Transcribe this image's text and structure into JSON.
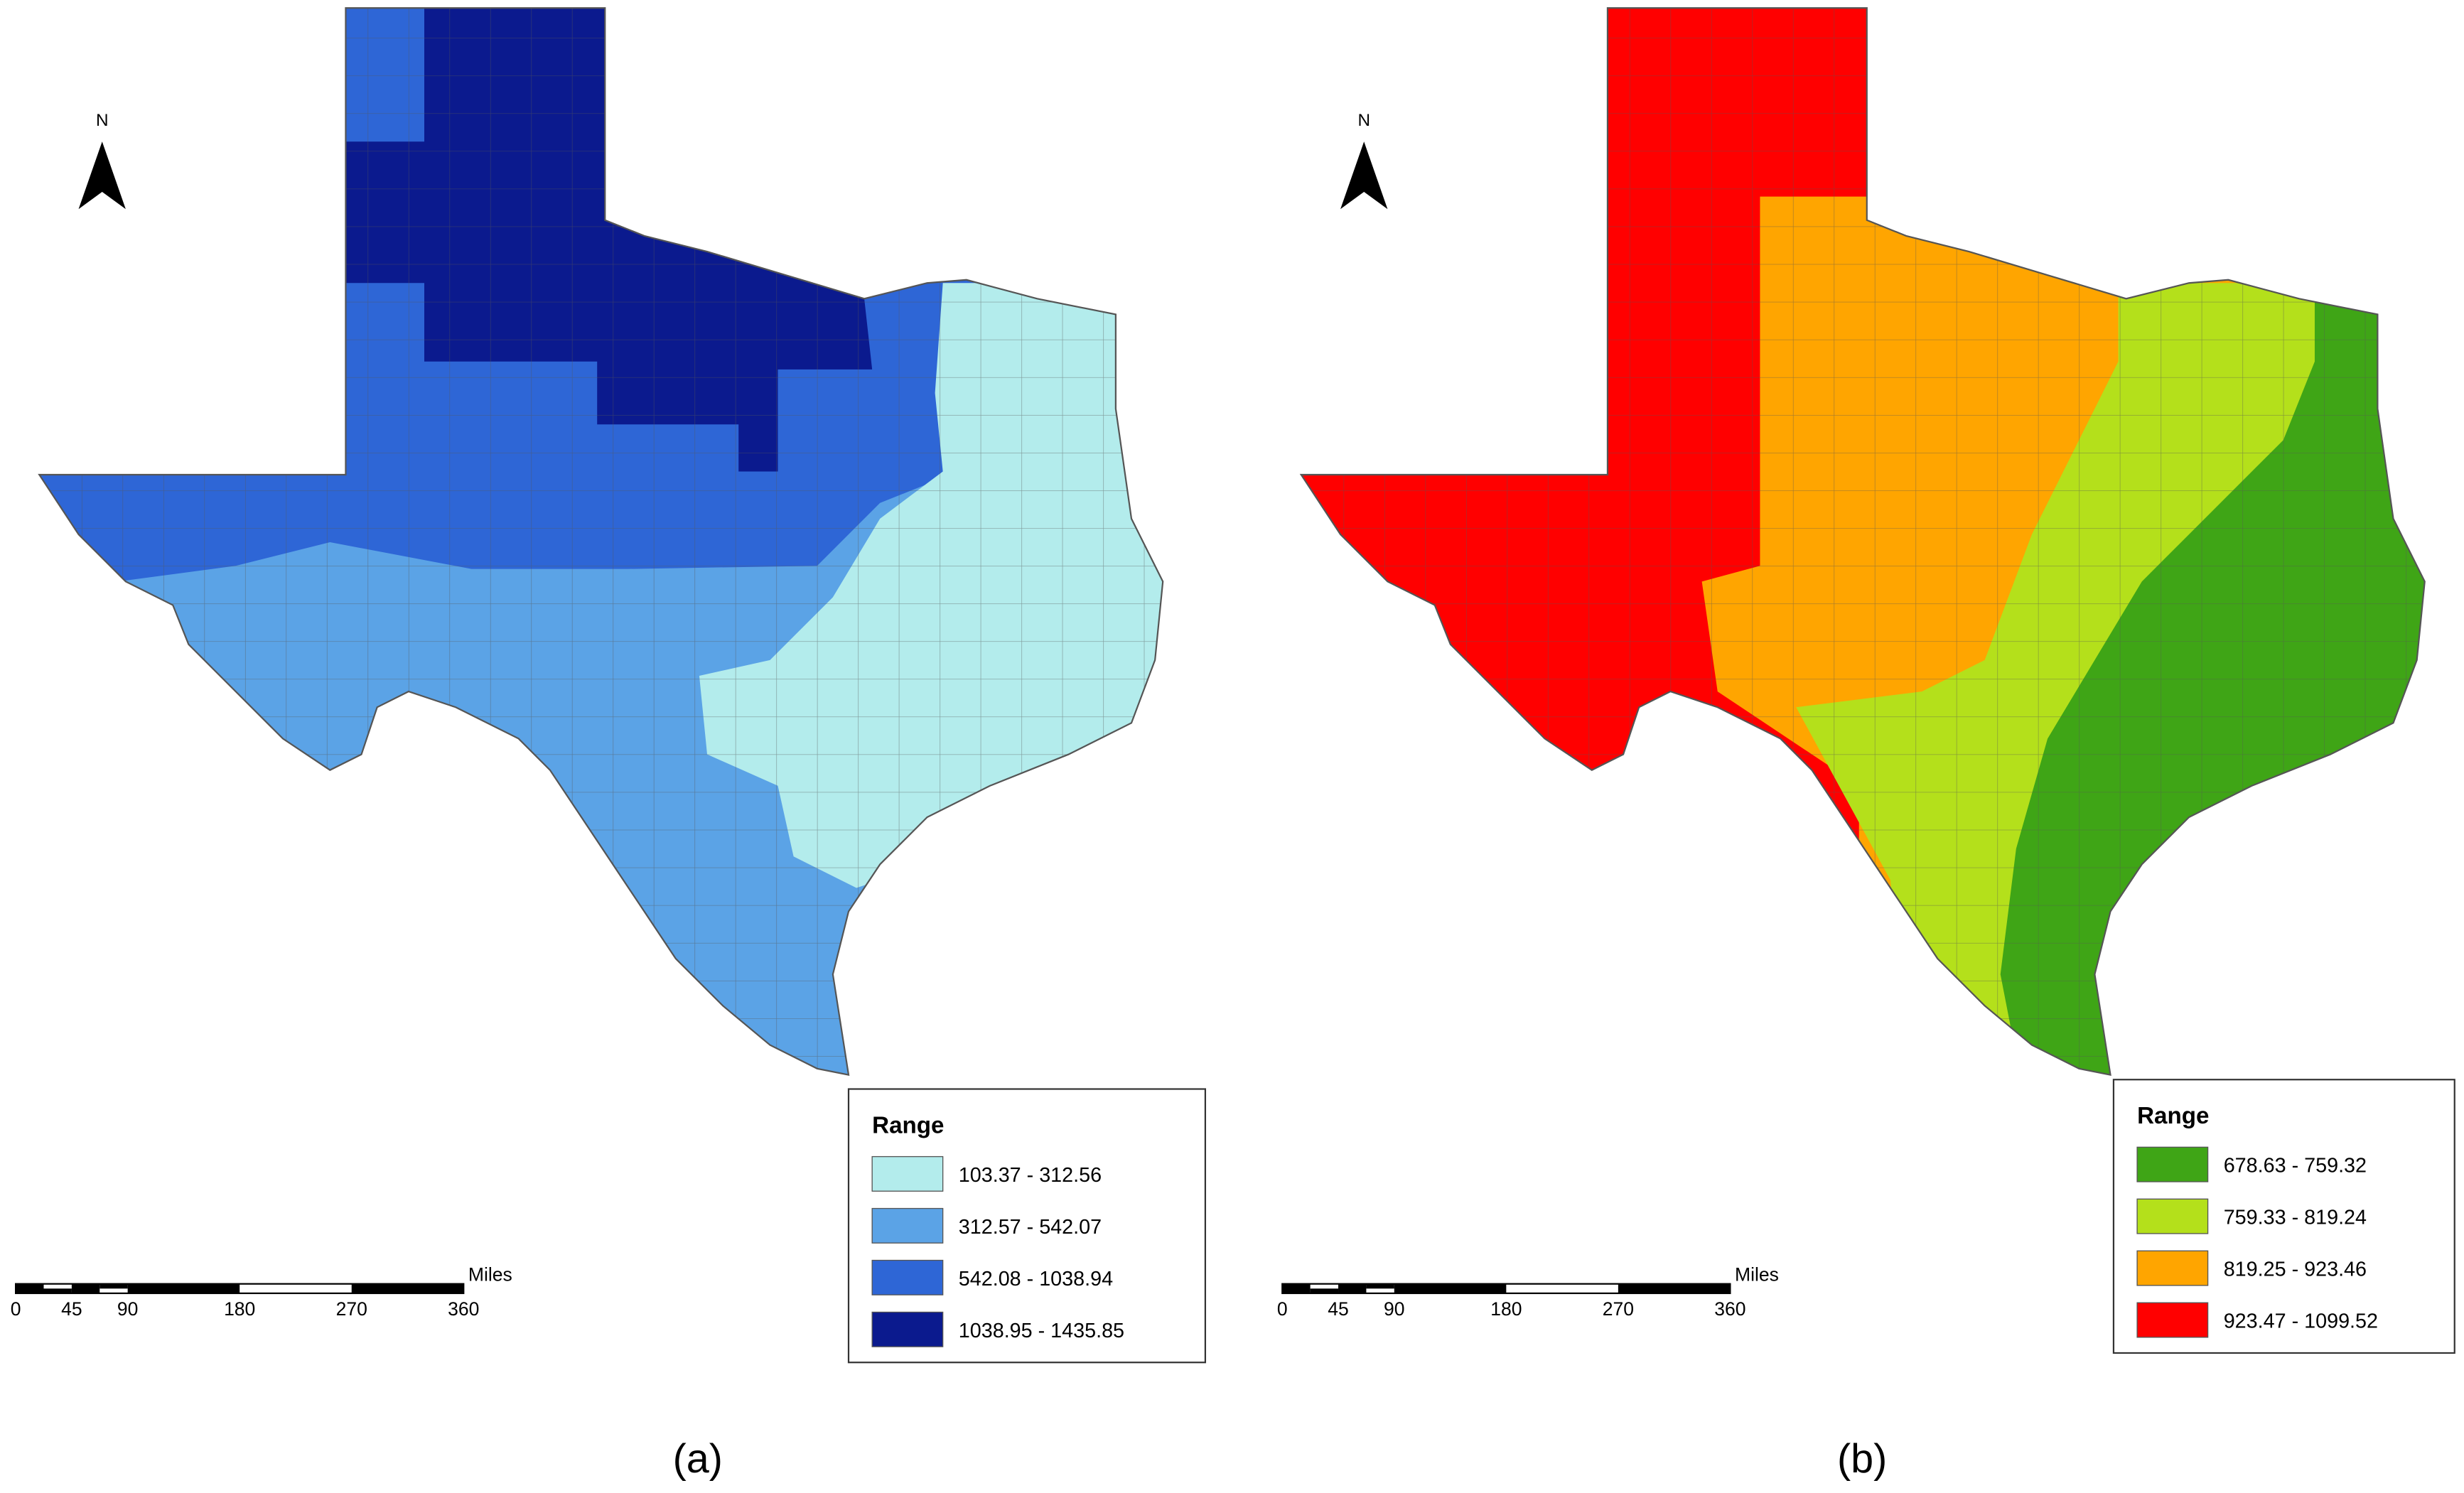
{
  "panels": [
    {
      "label": "(a)",
      "north": "N",
      "scale": {
        "unit": "Miles",
        "ticks": [
          "0",
          "45",
          "90",
          "180",
          "270",
          "360"
        ]
      },
      "legend": {
        "title": "Range",
        "classes": [
          {
            "label": "103.37 - 312.56",
            "color": "#b3ecec"
          },
          {
            "label": "312.57 - 542.07",
            "color": "#5ba3e6"
          },
          {
            "label": "542.08 - 1038.94",
            "color": "#2e66d6"
          },
          {
            "label": "1038.95 - 1435.85",
            "color": "#0b1a8e"
          }
        ]
      }
    },
    {
      "label": "(b)",
      "north": "N",
      "scale": {
        "unit": "Miles",
        "ticks": [
          "0",
          "45",
          "90",
          "180",
          "270",
          "360"
        ]
      },
      "legend": {
        "title": "Range",
        "classes": [
          {
            "label": "678.63 - 759.32",
            "color": "#3fa516"
          },
          {
            "label": "759.33 - 819.24",
            "color": "#b4e01b"
          },
          {
            "label": "819.25 - 923.46",
            "color": "#ffa500"
          },
          {
            "label": "923.47 - 1099.52",
            "color": "#ff0000"
          }
        ]
      }
    }
  ]
}
